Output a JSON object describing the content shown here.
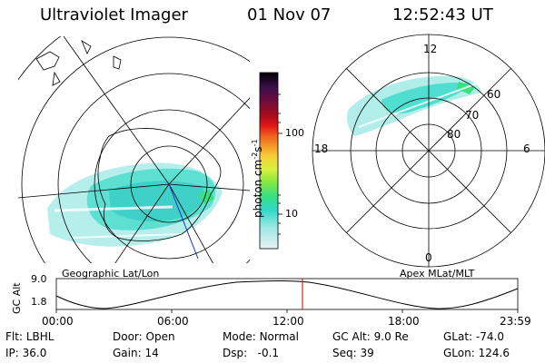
{
  "header": {
    "title": "Ultraviolet Imager",
    "date": "01 Nov 07",
    "time": "12:52:43 UT"
  },
  "panels": {
    "geographic": {
      "label": "Geographic Lat/Lon"
    },
    "apex": {
      "label": "Apex MLat/MLT",
      "mlt_labels": {
        "top": "12",
        "left": "18",
        "right": "6",
        "bottom": "0"
      },
      "lat_labels": [
        "60",
        "70",
        "80"
      ]
    }
  },
  "colorbar": {
    "unit_prefix": "photon cm",
    "unit_exp1": "-2",
    "unit_mid": "s",
    "unit_exp2": "-1",
    "ticks": [
      "100",
      "10"
    ],
    "colors": [
      "#000000",
      "#3a0e4a",
      "#6e0c3e",
      "#a60c1e",
      "#e01414",
      "#f06020",
      "#f49a28",
      "#f6d238",
      "#d8f040",
      "#88e840",
      "#38e080",
      "#30d8c8",
      "#9ee8e4",
      "#e8f0f2"
    ]
  },
  "altitude_plot": {
    "ylabel": "GC Alt",
    "ytick_top": "9.0",
    "ytick_bottom": "1.8",
    "xticks": [
      "00:00",
      "06:00",
      "12:00",
      "18:00",
      "23:59"
    ],
    "current_time_marker_color": "#d03010"
  },
  "status": {
    "row1": [
      {
        "label": "Flt:",
        "value": "LBHL"
      },
      {
        "label": "Door:",
        "value": "Open"
      },
      {
        "label": "Mode:",
        "value": "Normal"
      },
      {
        "label": "GC Alt:",
        "value": "9.0 Re"
      },
      {
        "label": "GLat:",
        "value": "-74.0"
      }
    ],
    "row2": [
      {
        "label": "IP:",
        "value": "36.0"
      },
      {
        "label": "Gain:",
        "value": "14"
      },
      {
        "label": "Dsp:",
        "value": "-0.1"
      },
      {
        "label": "Seq:",
        "value": "39"
      },
      {
        "label": "GLon:",
        "value": "124.6"
      }
    ]
  }
}
